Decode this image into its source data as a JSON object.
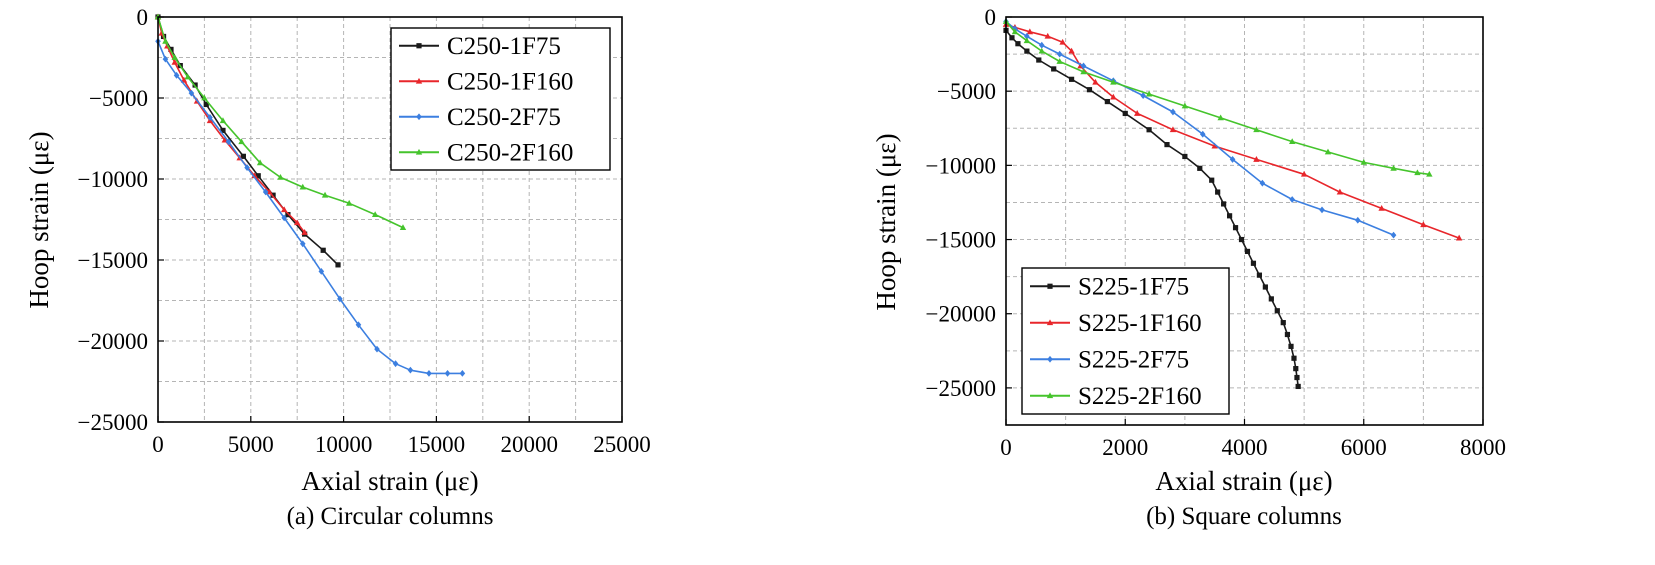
{
  "chart_data": [
    {
      "type": "line",
      "caption": "(a) Circular columns",
      "xlabel": "Axial strain (με)",
      "ylabel": "Hoop strain (με)",
      "xlim": [
        0,
        25000
      ],
      "ylim": [
        -25000,
        0
      ],
      "xticks": [
        0,
        5000,
        10000,
        15000,
        20000,
        25000
      ],
      "yticks": [
        0,
        -5000,
        -10000,
        -15000,
        -20000,
        -25000
      ],
      "xtick_labels": [
        "0",
        "5000",
        "10000",
        "15000",
        "20000",
        "25000"
      ],
      "ytick_labels": [
        "0",
        "−5000",
        "−10000",
        "−15000",
        "−20000",
        "−25000"
      ],
      "grid": true,
      "legend_position": "top-right",
      "series": [
        {
          "name": "C250-1F75",
          "color": "#1a1a1a",
          "marker": "square",
          "x": [
            0,
            300,
            700,
            1200,
            2000,
            2600,
            3500,
            4600,
            5400,
            6200,
            7000,
            7900,
            8900,
            9700
          ],
          "y": [
            0,
            -1200,
            -2000,
            -3000,
            -4200,
            -5400,
            -7000,
            -8600,
            -9800,
            -11000,
            -12200,
            -13400,
            -14400,
            -15300
          ]
        },
        {
          "name": "C250-1F160",
          "color": "#e8262b",
          "marker": "triangle",
          "x": [
            0,
            200,
            500,
            900,
            1400,
            2100,
            2800,
            3600,
            4400,
            5200,
            6000,
            6800,
            7500,
            7900
          ],
          "y": [
            0,
            -1000,
            -1800,
            -2800,
            -3900,
            -5200,
            -6400,
            -7600,
            -8700,
            -9800,
            -10800,
            -11900,
            -12700,
            -13300
          ]
        },
        {
          "name": "C250-2F75",
          "color": "#3c7fe0",
          "marker": "diamond",
          "x": [
            0,
            400,
            1000,
            1800,
            2800,
            3800,
            4800,
            5800,
            6800,
            7800,
            8800,
            9800,
            10800,
            11800,
            12800,
            13600,
            14600,
            15600,
            16400
          ],
          "y": [
            -1500,
            -2600,
            -3600,
            -4700,
            -6200,
            -7700,
            -9300,
            -10800,
            -12400,
            -14000,
            -15700,
            -17400,
            -19000,
            -20500,
            -21400,
            -21800,
            -22000,
            -22000,
            -22000
          ]
        },
        {
          "name": "C250-2F160",
          "color": "#45c42c",
          "marker": "triangle",
          "x": [
            0,
            400,
            900,
            1600,
            2500,
            3500,
            4500,
            5500,
            6600,
            7800,
            9000,
            10300,
            11700,
            13200
          ],
          "y": [
            0,
            -1500,
            -2500,
            -3700,
            -5000,
            -6400,
            -7700,
            -9000,
            -9900,
            -10500,
            -11000,
            -11500,
            -12200,
            -13000
          ]
        }
      ]
    },
    {
      "type": "line",
      "caption": "(b) Square columns",
      "xlabel": "Axial strain (με)",
      "ylabel": "Hoop strain (με)",
      "xlim": [
        0,
        8000
      ],
      "ylim": [
        -27500,
        0
      ],
      "xticks": [
        0,
        2000,
        4000,
        6000,
        8000
      ],
      "yticks": [
        0,
        -5000,
        -10000,
        -15000,
        -20000,
        -25000
      ],
      "xtick_labels": [
        "0",
        "2000",
        "4000",
        "6000",
        "8000"
      ],
      "ytick_labels": [
        "0",
        "−5000",
        "−10000",
        "−15000",
        "−20000",
        "−25000"
      ],
      "grid": true,
      "legend_position": "bottom-left",
      "series": [
        {
          "name": "S225-1F75",
          "color": "#1a1a1a",
          "marker": "square",
          "x": [
            0,
            100,
            200,
            350,
            550,
            800,
            1100,
            1400,
            1700,
            2000,
            2400,
            2700,
            3000,
            3250,
            3450,
            3550,
            3650,
            3750,
            3850,
            3950,
            4050,
            4150,
            4250,
            4350,
            4450,
            4550,
            4650,
            4720,
            4780,
            4830,
            4860,
            4880,
            4900
          ],
          "y": [
            -900,
            -1400,
            -1800,
            -2300,
            -2900,
            -3500,
            -4200,
            -4900,
            -5700,
            -6500,
            -7600,
            -8600,
            -9400,
            -10200,
            -11000,
            -11800,
            -12600,
            -13400,
            -14200,
            -15000,
            -15800,
            -16600,
            -17400,
            -18200,
            -19000,
            -19800,
            -20600,
            -21400,
            -22200,
            -23000,
            -23700,
            -24300,
            -24900
          ]
        },
        {
          "name": "S225-1F160",
          "color": "#e8262b",
          "marker": "triangle",
          "x": [
            0,
            150,
            400,
            700,
            950,
            1100,
            1250,
            1500,
            1800,
            2200,
            2800,
            3500,
            4200,
            5000,
            5600,
            6300,
            7000,
            7600
          ],
          "y": [
            -500,
            -700,
            -1000,
            -1300,
            -1700,
            -2300,
            -3300,
            -4400,
            -5400,
            -6500,
            -7600,
            -8700,
            -9600,
            -10600,
            -11800,
            -12900,
            -14000,
            -14900
          ]
        },
        {
          "name": "S225-2F75",
          "color": "#3c7fe0",
          "marker": "diamond",
          "x": [
            0,
            150,
            350,
            600,
            900,
            1300,
            1800,
            2300,
            2800,
            3300,
            3800,
            4300,
            4800,
            5300,
            5900,
            6500
          ],
          "y": [
            -300,
            -800,
            -1300,
            -1900,
            -2500,
            -3300,
            -4300,
            -5300,
            -6400,
            -7900,
            -9600,
            -11200,
            -12300,
            -13000,
            -13700,
            -14700
          ]
        },
        {
          "name": "S225-2F160",
          "color": "#45c42c",
          "marker": "triangle",
          "x": [
            0,
            150,
            350,
            600,
            900,
            1300,
            1800,
            2400,
            3000,
            3600,
            4200,
            4800,
            5400,
            6000,
            6500,
            6900,
            7100
          ],
          "y": [
            -300,
            -1000,
            -1600,
            -2300,
            -3000,
            -3700,
            -4400,
            -5200,
            -6000,
            -6800,
            -7600,
            -8400,
            -9100,
            -9800,
            -10200,
            -10500,
            -10600
          ]
        }
      ]
    }
  ]
}
